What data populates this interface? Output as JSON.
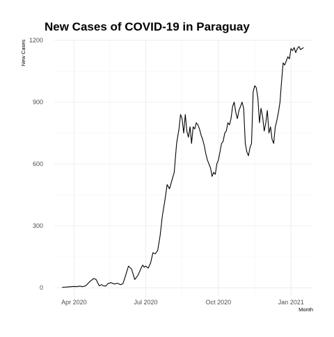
{
  "chart_data": {
    "type": "line",
    "title": "New Cases of COVID-19 in Paraguay",
    "xlabel": "Month",
    "ylabel": "New Cases",
    "x_ticks": [
      "Apr 2020",
      "Jul 2020",
      "Oct 2020",
      "Jan 2021"
    ],
    "y_ticks": [
      "0",
      "300",
      "600",
      "900",
      "1200"
    ],
    "ylim": [
      -40,
      1200
    ],
    "xlim_days": [
      -10,
      318
    ],
    "x_start_date": "2020-03-17",
    "grid": true,
    "colors": {
      "line": "#000000",
      "grid_major": "#ebebeb",
      "grid_minor": "#f4f4f4"
    },
    "series": [
      {
        "name": "New Cases",
        "day": [
          0,
          8,
          15,
          18,
          22,
          26,
          30,
          35,
          40,
          43,
          47,
          50,
          52,
          55,
          58,
          62,
          66,
          70,
          74,
          77,
          80,
          84,
          88,
          92,
          96,
          100,
          102,
          104,
          106,
          109,
          112,
          115,
          118,
          121,
          124,
          127,
          130,
          133,
          136,
          139,
          142,
          145,
          148,
          150,
          152,
          154,
          156,
          158,
          160,
          162,
          164,
          166,
          168,
          170,
          172,
          174,
          176,
          178,
          180,
          182,
          184,
          186,
          188,
          190,
          192,
          194,
          196,
          198,
          200,
          202,
          204,
          206,
          208,
          210,
          212,
          214,
          216,
          218,
          220,
          222,
          224,
          226,
          228,
          230,
          232,
          234,
          236,
          238,
          240,
          242,
          244,
          246,
          248,
          250,
          252,
          254,
          256,
          258,
          260,
          262,
          264,
          266,
          268,
          270,
          272,
          274,
          276,
          278,
          280,
          282,
          284,
          286,
          288,
          290,
          292,
          294,
          296,
          298,
          300,
          302,
          304,
          306
        ],
        "values": [
          2,
          4,
          6,
          5,
          8,
          5,
          10,
          30,
          45,
          40,
          10,
          15,
          10,
          8,
          20,
          25,
          18,
          22,
          15,
          20,
          55,
          105,
          90,
          40,
          60,
          95,
          110,
          100,
          105,
          95,
          120,
          170,
          165,
          180,
          250,
          350,
          420,
          500,
          480,
          520,
          560,
          700,
          770,
          840,
          820,
          750,
          840,
          760,
          730,
          780,
          700,
          780,
          770,
          800,
          790,
          770,
          740,
          720,
          690,
          650,
          620,
          600,
          580,
          540,
          560,
          550,
          600,
          620,
          660,
          700,
          710,
          750,
          760,
          800,
          790,
          820,
          880,
          900,
          850,
          820,
          860,
          880,
          900,
          870,
          700,
          660,
          640,
          680,
          700,
          950,
          980,
          970,
          920,
          800,
          870,
          830,
          760,
          800,
          860,
          750,
          780,
          720,
          700,
          780,
          810,
          850,
          900,
          1000,
          1090,
          1080,
          1100,
          1120,
          1110,
          1160,
          1150,
          1165,
          1140,
          1160,
          1170,
          1155,
          1160,
          1165
        ]
      }
    ]
  }
}
